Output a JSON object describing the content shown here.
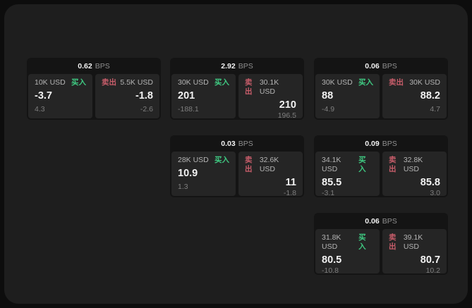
{
  "colors": {
    "outer-bg": "#0d0d0d",
    "page-bg": "#1e1e1e",
    "card-bg": "#141414",
    "tile-bg": "#252525",
    "text-primary": "#f2f2f2",
    "text-label": "#b4b4b4",
    "text-bps": "#909090",
    "text-dim": "#7e7e7e",
    "buy-green": "#3fca82",
    "sell-red": "#c75d6a"
  },
  "cards": [
    {
      "bps_value": "0.62",
      "bps_unit": "BPS",
      "buy": {
        "amount": "10K USD",
        "side": "买入",
        "value": "-3.7",
        "sub": "4.3"
      },
      "sell": {
        "side": "卖出",
        "amount": "5.5K USD",
        "value": "-1.8",
        "sub": "-2.6"
      }
    },
    {
      "bps_value": "2.92",
      "bps_unit": "BPS",
      "buy": {
        "amount": "30K USD",
        "side": "买入",
        "value": "201",
        "sub": "-188.1"
      },
      "sell": {
        "side": "卖出",
        "amount": "30.1K USD",
        "value": "210",
        "sub": "196.5"
      }
    },
    {
      "bps_value": "0.06",
      "bps_unit": "BPS",
      "buy": {
        "amount": "30K USD",
        "side": "买入",
        "value": "88",
        "sub": "-4.9"
      },
      "sell": {
        "side": "卖出",
        "amount": "30K USD",
        "value": "88.2",
        "sub": "4.7"
      }
    },
    {
      "bps_value": "0.03",
      "bps_unit": "BPS",
      "buy": {
        "amount": "28K USD",
        "side": "买入",
        "value": "10.9",
        "sub": "1.3"
      },
      "sell": {
        "side": "卖出",
        "amount": "32.6K USD",
        "value": "11",
        "sub": "-1.8"
      }
    },
    {
      "bps_value": "0.09",
      "bps_unit": "BPS",
      "buy": {
        "amount": "34.1K USD",
        "side": "买入",
        "value": "85.5",
        "sub": "-3.1"
      },
      "sell": {
        "side": "卖出",
        "amount": "32.8K USD",
        "value": "85.8",
        "sub": "3.0"
      }
    },
    {
      "bps_value": "0.06",
      "bps_unit": "BPS",
      "buy": {
        "amount": "31.8K USD",
        "side": "买入",
        "value": "80.5",
        "sub": "-10.8"
      },
      "sell": {
        "side": "卖出",
        "amount": "39.1K USD",
        "value": "80.7",
        "sub": "10.2"
      }
    }
  ]
}
